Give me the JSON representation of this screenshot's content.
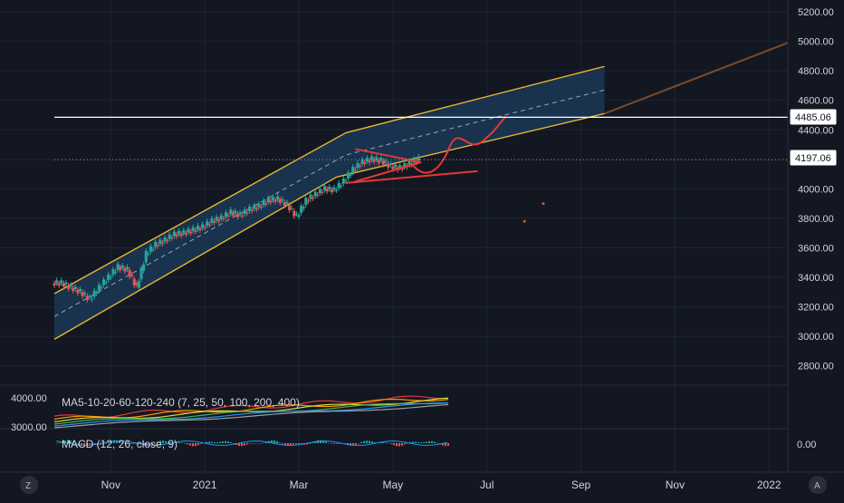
{
  "colors": {
    "background": "#131722",
    "grid": "#1f2433",
    "axis_text": "#b2b5be",
    "up": "#26a69a",
    "down": "#ef5350",
    "channel_fill": "#1b3553",
    "channel_line": "#e8b830",
    "extension_line": "#7a4a2a",
    "drawing_red": "#e53935",
    "price_line": "#ffffff"
  },
  "price_labels": {
    "upper": "4485.06",
    "current": "4197.06"
  },
  "indicators": {
    "ma_title": "MA5-10-20-60-120-240 (7, 25, 50, 100, 200, 400)",
    "ma_scale": [
      "4000.00",
      "3000.00"
    ],
    "macd_title": "MACD (12, 26, close, 9)",
    "macd_scale": "0.00"
  },
  "corner": {
    "left": "Z",
    "right": "A"
  },
  "chart_data": {
    "type": "line",
    "title": "",
    "price_axis": {
      "ticks": [
        2800,
        3000,
        3200,
        3400,
        3600,
        3800,
        4000,
        4200,
        4400,
        4600,
        4800,
        5000,
        5200
      ],
      "tick_labels": [
        "2800.00",
        "3000.00",
        "3200.00",
        "3400.00",
        "3600.00",
        "3800.00",
        "4000.00",
        "4200.00",
        "4400.00",
        "4600.00",
        "4800.00",
        "5000.00",
        "5200.00"
      ],
      "range": [
        2700,
        5280
      ]
    },
    "time_axis": {
      "labels": [
        "Nov",
        "2021",
        "Mar",
        "May",
        "Jul",
        "Sep",
        "Nov",
        "2022"
      ],
      "label_month_index": [
        1,
        3,
        5,
        7,
        9,
        11,
        13,
        15
      ],
      "range_month_index": [
        -0.2,
        15.4
      ]
    },
    "series": [
      {
        "values_month_index": [
          -0.2,
          0.0,
          0.2,
          0.4,
          0.6,
          0.8,
          1.0,
          1.2,
          1.4,
          1.6,
          1.8,
          2.0,
          2.2,
          2.4,
          2.6,
          2.8,
          3.0,
          3.2,
          3.4,
          3.6,
          3.8,
          4.0,
          4.2,
          4.4,
          4.6,
          4.8,
          5.0,
          5.2,
          5.4,
          5.6,
          5.8,
          6.0,
          6.2,
          6.4,
          6.6,
          6.8,
          7.0,
          7.2,
          7.4
        ],
        "close": [
          3360,
          3330,
          3300,
          3250,
          3330,
          3400,
          3470,
          3450,
          3330,
          3560,
          3620,
          3650,
          3690,
          3700,
          3720,
          3740,
          3780,
          3800,
          3840,
          3820,
          3860,
          3880,
          3920,
          3930,
          3890,
          3810,
          3920,
          3960,
          4000,
          3990,
          4050,
          4130,
          4180,
          4200,
          4190,
          4150,
          4140,
          4170,
          4200
        ]
      }
    ],
    "channel": {
      "upper": [
        [
          -0.2,
          3290
        ],
        [
          6.0,
          4380
        ],
        [
          11.5,
          4830
        ]
      ],
      "lower": [
        [
          -0.2,
          2980
        ],
        [
          5.8,
          4080
        ],
        [
          11.5,
          4510
        ]
      ],
      "extension": [
        [
          11.5,
          4510
        ],
        [
          15.4,
          4990
        ]
      ]
    },
    "horizontal_lines": [
      4485.06,
      4197.06
    ]
  }
}
